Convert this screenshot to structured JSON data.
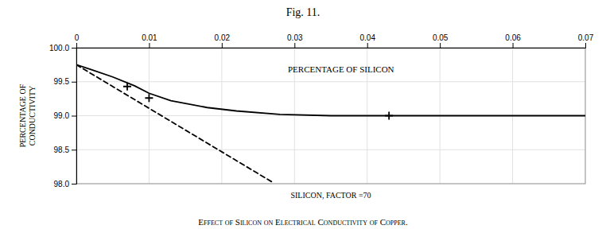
{
  "chart_data": {
    "type": "line",
    "title": "Fig. 11.",
    "caption": "Effect of Silicon on Electrical Conductivity of Copper.",
    "xlabel": "PERCENTAGE OF SILICON",
    "annotations": [
      "SILICON, FACTOR =70"
    ],
    "ylabel": "PERCENTAGE OF\nCONDUCTIVITY",
    "xlim": [
      0,
      0.07
    ],
    "ylim": [
      98.0,
      100.0
    ],
    "xticks": [
      0,
      0.01,
      0.02,
      0.03,
      0.04,
      0.05,
      0.06,
      0.07
    ],
    "yticks": [
      {
        "value": 98.0,
        "label": "98.0"
      },
      98.5,
      {
        "value": 99.0,
        "label": "99.0"
      },
      99.5,
      {
        "value": 100.0,
        "label": "100.0"
      }
    ],
    "grid": true,
    "series": [
      {
        "type": "line",
        "line_style": "solid",
        "color": "#000000",
        "x": [
          0,
          0.002,
          0.005,
          0.008,
          0.01,
          0.013,
          0.018,
          0.022,
          0.028,
          0.035,
          0.04,
          0.05,
          0.06,
          0.07
        ],
        "values": [
          99.75,
          99.68,
          99.57,
          99.44,
          99.33,
          99.22,
          99.12,
          99.07,
          99.02,
          99.0,
          99.0,
          99.0,
          99.0,
          99.0
        ]
      },
      {
        "type": "line",
        "line_style": "dashed",
        "color": "#000000",
        "x": [
          0,
          0.027
        ],
        "values": [
          99.75,
          98.02
        ]
      },
      {
        "type": "scatter",
        "marker": "plus",
        "color": "#000000",
        "x": [
          0.007,
          0.01,
          0.043
        ],
        "values": [
          99.43,
          99.26,
          99.0
        ]
      }
    ]
  }
}
